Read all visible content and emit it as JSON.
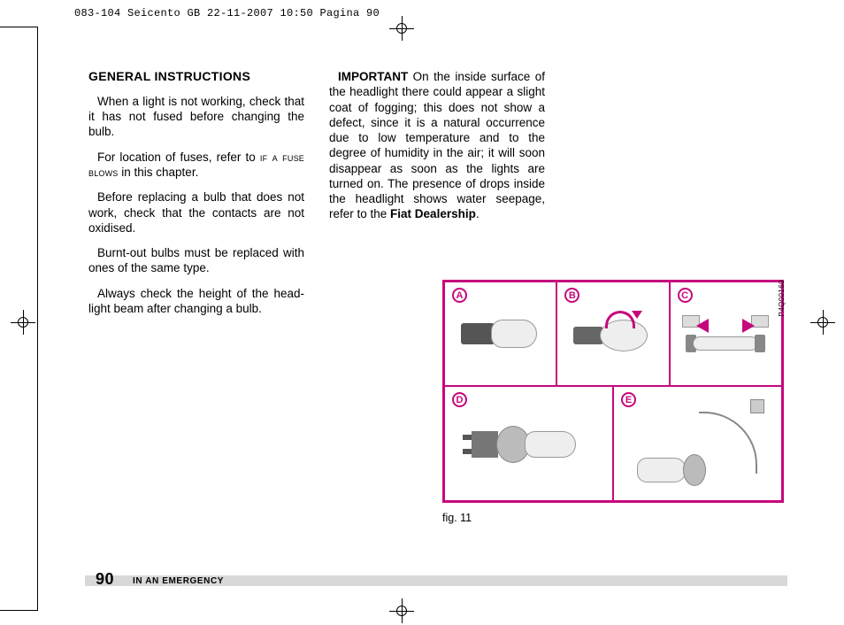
{
  "slug": "083-104 Seicento GB  22-11-2007  10:50  Pagina 90",
  "accent_color": "#c5077c",
  "col_left": {
    "heading": "GENERAL INSTRUCTIONS",
    "p1": "When a light is not working, check that it has not fused before changing the bulb.",
    "p2_a": "For location of fuses, refer to ",
    "p2_sc": "if a fuse blows",
    "p2_b": " in this chapter.",
    "p3": "Before replacing a bulb that does not work, check that the contacts are not oxidised.",
    "p4": "Burnt-out bulbs must be replaced with ones of the same type.",
    "p5": "Always check the height of the head­light beam after changing a bulb."
  },
  "col_right": {
    "lead_bold": "IMPORTANT",
    "lead_rest": " On the inside sur­face of the headlight there could ap­pear a slight coat of fogging; this does not show a defect, since it is a natural occurrence due to low temperature and to the degree of humidity in the air; it will soon disappear as soon as the lights are turned on. The presence of drops inside the headlight shows water seepage, refer to the ",
    "lead_bold2": "Fiat Dealership",
    "lead_end": "."
  },
  "figure": {
    "code": "P4Q00160",
    "labels": {
      "a": "A",
      "b": "B",
      "c": "C",
      "d": "D",
      "e": "E"
    },
    "caption": "fig. 11"
  },
  "footer": {
    "page": "90",
    "section": "IN AN EMERGENCY"
  }
}
